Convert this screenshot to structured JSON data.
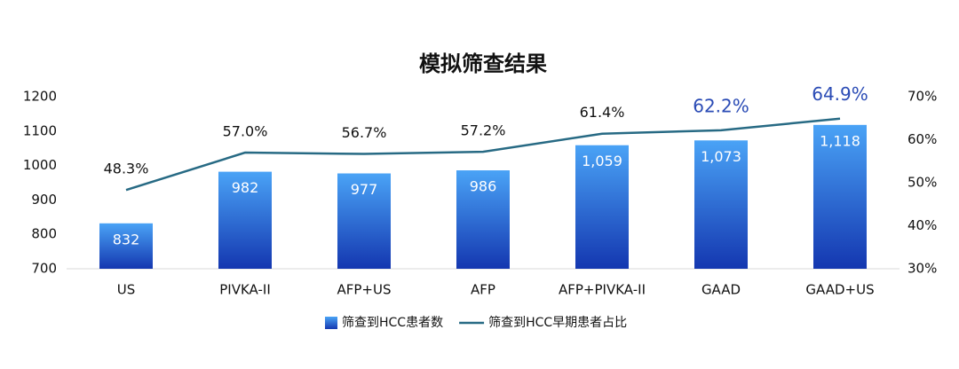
{
  "chart_data": {
    "type": "bar",
    "title": "模拟筛查结果",
    "categories": [
      "US",
      "PIVKA-II",
      "AFP+US",
      "AFP",
      "AFP+PIVKA-II",
      "GAAD",
      "GAAD+US"
    ],
    "series": [
      {
        "name": "筛查到HCC患者数",
        "type": "bar",
        "color": "#1437b0",
        "values": [
          832,
          982,
          977,
          986,
          1059,
          1073,
          1118
        ],
        "value_labels": [
          "832",
          "982",
          "977",
          "986",
          "1,059",
          "1,073",
          "1,118"
        ]
      },
      {
        "name": "筛查到HCC早期患者占比",
        "type": "line",
        "axis": "y2",
        "color": "#276a84",
        "values": [
          48.3,
          57.0,
          56.7,
          57.2,
          61.4,
          62.2,
          64.9
        ],
        "value_labels": [
          "48.3%",
          "57.0%",
          "56.7%",
          "57.2%",
          "61.4%",
          "62.2%",
          "64.9%"
        ],
        "value_label_colors": [
          "#111111",
          "#111111",
          "#111111",
          "#111111",
          "#111111",
          "#2a4bb5",
          "#2a4bb5"
        ]
      }
    ],
    "ylim": [
      700,
      1200
    ],
    "yticks": [
      700,
      800,
      900,
      1000,
      1100,
      1200
    ],
    "y2lim": [
      30,
      70
    ],
    "y2ticks": [
      {
        "value": 30,
        "label": "30%"
      },
      {
        "value": 40,
        "label": "40%"
      },
      {
        "value": 50,
        "label": "50%"
      },
      {
        "value": 60,
        "label": "60%"
      },
      {
        "value": 70,
        "label": "70%"
      }
    ],
    "grid": false,
    "legend": "bottom"
  }
}
